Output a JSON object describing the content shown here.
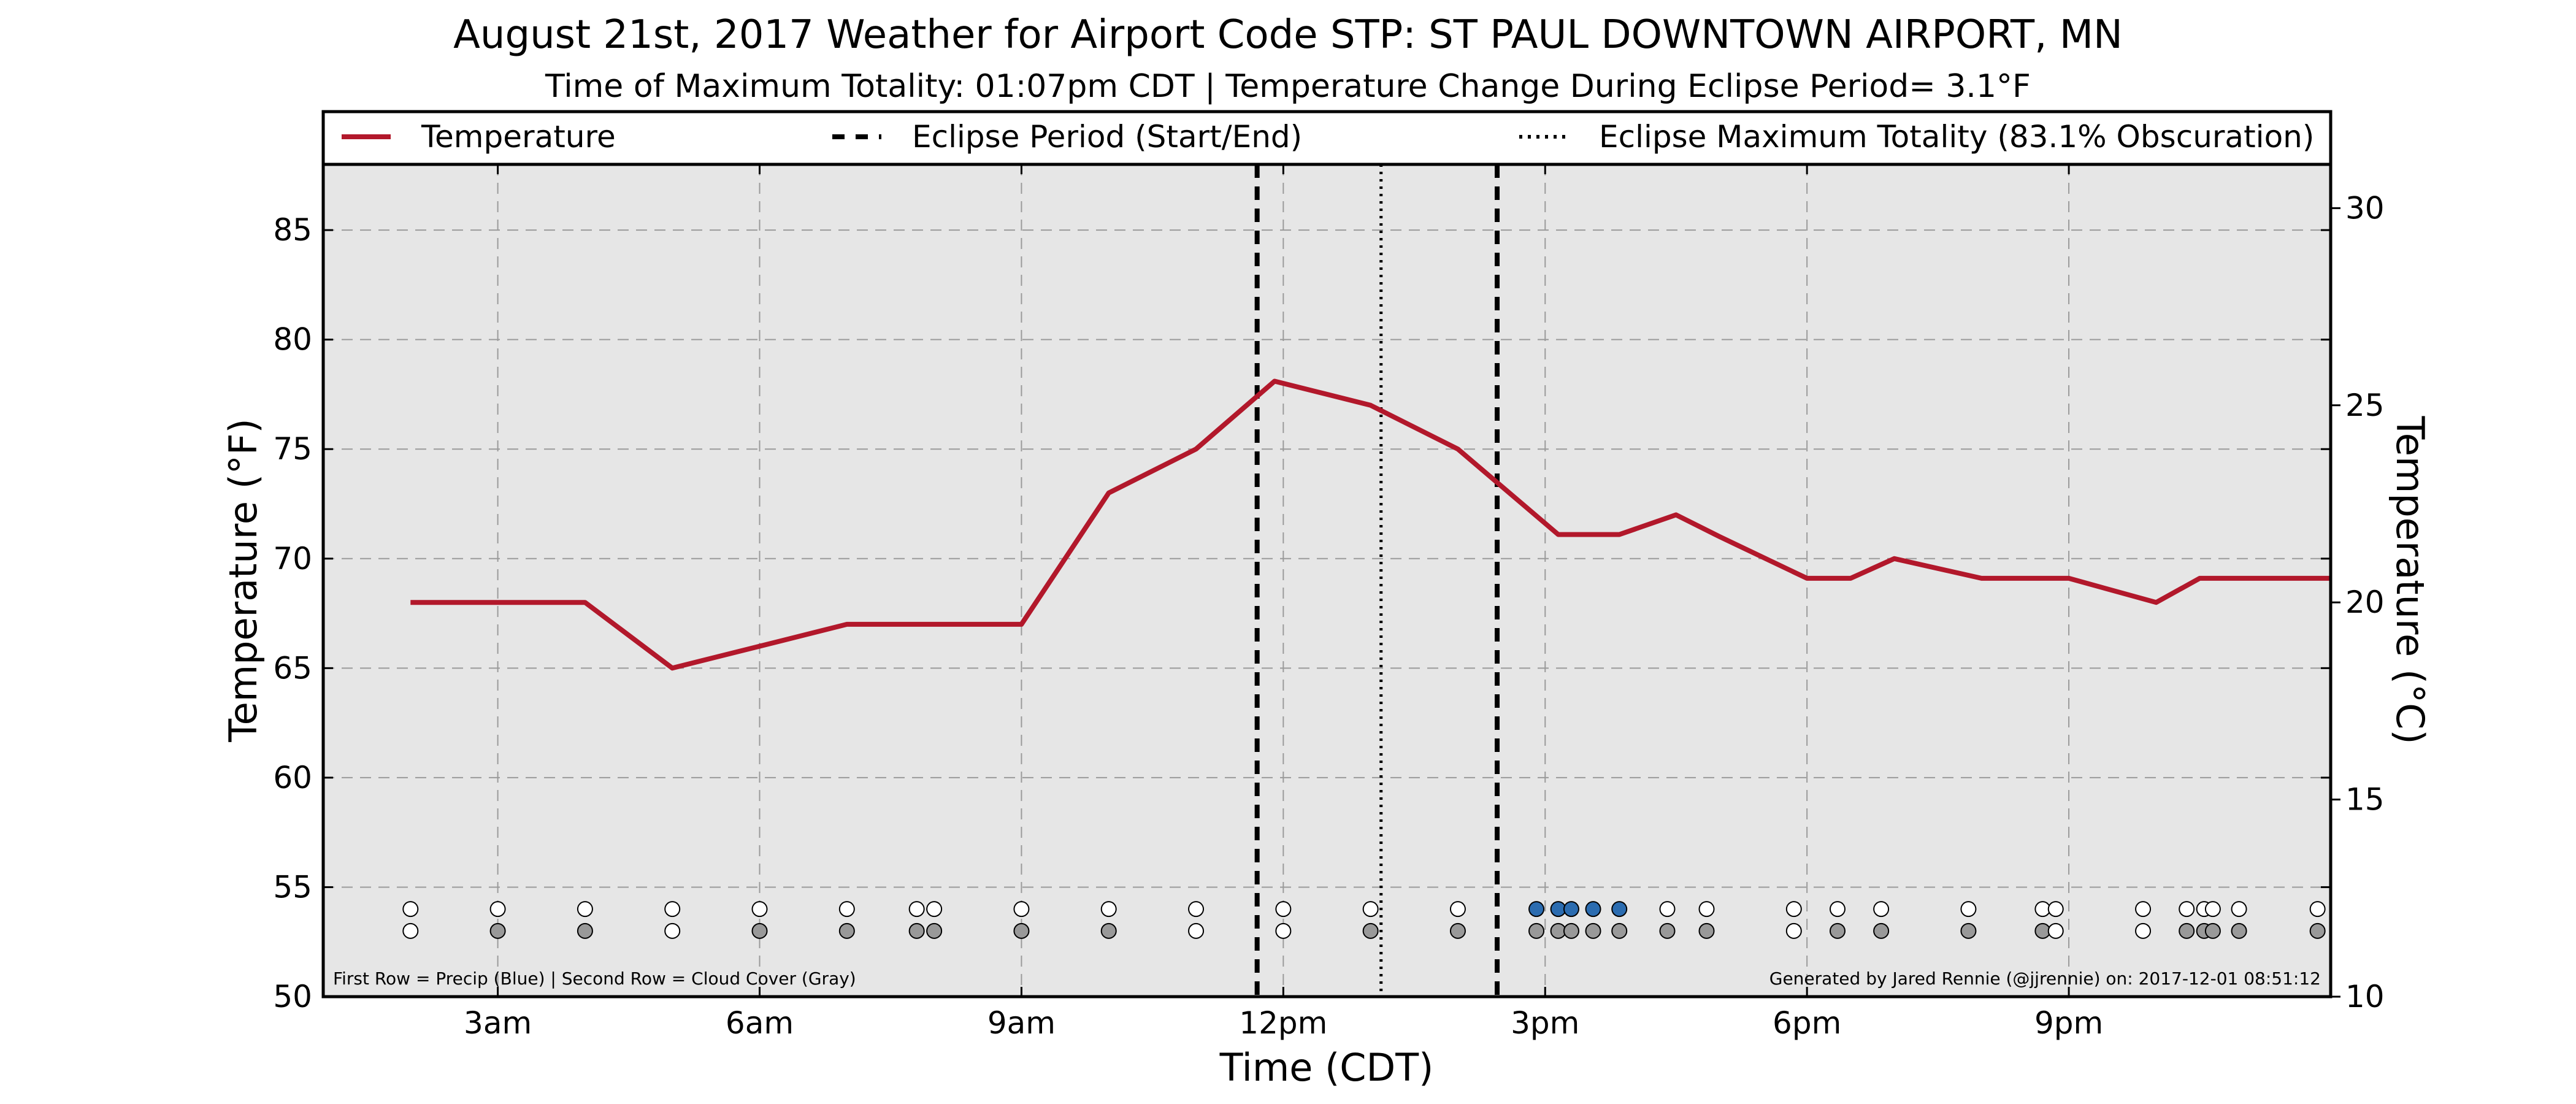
{
  "title": "August 21st, 2017 Weather for Airport Code STP: ST PAUL DOWNTOWN AIRPORT, MN",
  "subtitle": "Time of Maximum Totality: 01:07pm CDT | Temperature Change During Eclipse Period= 3.1°F",
  "footer_left": "First Row = Precip (Blue) | Second Row = Cloud Cover (Gray)",
  "footer_right": "Generated by Jared Rennie (@jjrennie) on: 2017-12-01 08:51:12",
  "colors": {
    "temperature_line": "#b2182b",
    "plot_background": "#e6e6e6",
    "precip_marker": "#2b6cb0",
    "cloud_marker": "#999999",
    "clear_marker": "#ffffff"
  },
  "legend": {
    "placement": "top",
    "temperature": "Temperature",
    "eclipse_period": "Eclipse Period (Start/End)",
    "eclipse_max": "Eclipse Maximum Totality (83.1% Obscuration)"
  },
  "chart_data": {
    "type": "line",
    "xlabel": "Time (CDT)",
    "ylabel": "Temperature (°F)",
    "ylabel_right": "Temperature (°C)",
    "xlim": [
      1.0,
      24.0
    ],
    "ylim": [
      50,
      88
    ],
    "ylim_right": [
      10,
      31.11
    ],
    "grid": true,
    "x_ticks": [
      {
        "x": 3,
        "label": "3am"
      },
      {
        "x": 6,
        "label": "6am"
      },
      {
        "x": 9,
        "label": "9am"
      },
      {
        "x": 12,
        "label": "12pm"
      },
      {
        "x": 15,
        "label": "3pm"
      },
      {
        "x": 18,
        "label": "6pm"
      },
      {
        "x": 21,
        "label": "9pm"
      }
    ],
    "y_ticks": [
      50,
      55,
      60,
      65,
      70,
      75,
      80,
      85
    ],
    "y_ticks_right": [
      10,
      15,
      20,
      25,
      30
    ],
    "series": [
      {
        "name": "Temperature",
        "x": [
          2.0,
          4.0,
          5.0,
          6.0,
          7.0,
          9.0,
          10.0,
          11.0,
          11.9,
          13.0,
          14.0,
          15.15,
          15.85,
          16.5,
          17.0,
          18.0,
          18.5,
          19.0,
          20.0,
          21.0,
          22.0,
          22.5,
          23.0,
          24.0
        ],
        "y": [
          68,
          68,
          65,
          66,
          67,
          67,
          73,
          75,
          78.1,
          77,
          75,
          71.1,
          71.1,
          72,
          71,
          69.1,
          69.1,
          70,
          69.1,
          69.1,
          68,
          69.1,
          69.1,
          69.1
        ]
      }
    ],
    "eclipse_start": 11.7,
    "eclipse_max": 13.12,
    "eclipse_end": 14.45,
    "observations": {
      "precip_row_value": 54.0,
      "cloud_row_value": 53.0,
      "times": [
        2.0,
        3.0,
        4.0,
        5.0,
        6.0,
        7.0,
        7.8,
        8.0,
        9.0,
        10.0,
        11.0,
        12.0,
        13.0,
        14.0,
        14.9,
        15.15,
        15.3,
        15.55,
        15.85,
        16.4,
        16.85,
        17.85,
        18.35,
        18.85,
        19.85,
        20.7,
        20.85,
        21.85,
        22.35,
        22.55,
        22.65,
        22.95,
        23.85
      ],
      "precip": [
        "none",
        "none",
        "none",
        "none",
        "none",
        "none",
        "none",
        "none",
        "none",
        "none",
        "none",
        "none",
        "none",
        "none",
        "rain",
        "rain",
        "rain",
        "rain",
        "rain",
        "none",
        "none",
        "none",
        "none",
        "none",
        "none",
        "none",
        "none",
        "none",
        "none",
        "none",
        "none",
        "none",
        "none"
      ],
      "cloud": [
        "clear",
        "cloudy",
        "cloudy",
        "clear",
        "cloudy",
        "cloudy",
        "cloudy",
        "cloudy",
        "cloudy",
        "cloudy",
        "clear",
        "clear",
        "cloudy",
        "cloudy",
        "cloudy",
        "cloudy",
        "cloudy",
        "cloudy",
        "cloudy",
        "cloudy",
        "cloudy",
        "clear",
        "cloudy",
        "cloudy",
        "cloudy",
        "cloudy",
        "clear",
        "clear",
        "cloudy",
        "cloudy",
        "cloudy",
        "cloudy",
        "cloudy"
      ]
    }
  }
}
